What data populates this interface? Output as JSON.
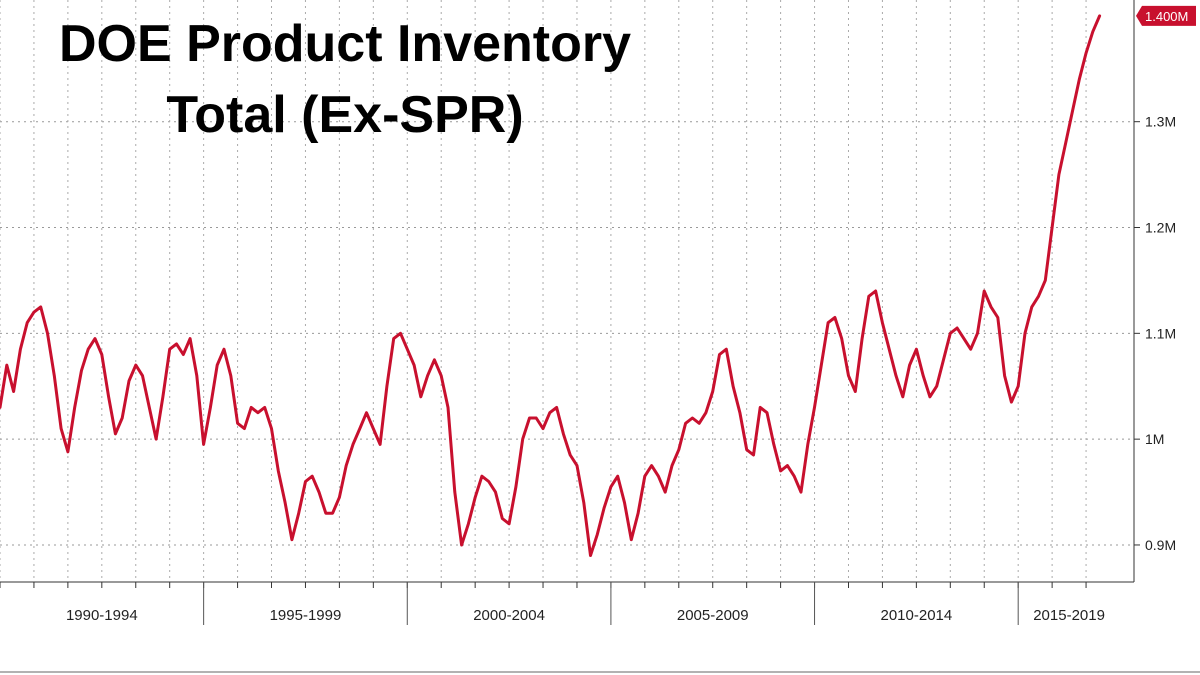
{
  "chart_data": {
    "type": "line",
    "title_line1": "DOE Product Inventory",
    "title_line2": "Total (Ex-SPR)",
    "series": [
      {
        "color": "#c8102e",
        "points": [
          [
            1988.0,
            1.03
          ],
          [
            1988.2,
            1.07
          ],
          [
            1988.4,
            1.045
          ],
          [
            1988.6,
            1.085
          ],
          [
            1988.8,
            1.11
          ],
          [
            1989.0,
            1.12
          ],
          [
            1989.2,
            1.125
          ],
          [
            1989.4,
            1.1
          ],
          [
            1989.6,
            1.06
          ],
          [
            1989.8,
            1.01
          ],
          [
            1990.0,
            0.988
          ],
          [
            1990.2,
            1.03
          ],
          [
            1990.4,
            1.065
          ],
          [
            1990.6,
            1.085
          ],
          [
            1990.8,
            1.095
          ],
          [
            1991.0,
            1.08
          ],
          [
            1991.2,
            1.04
          ],
          [
            1991.4,
            1.005
          ],
          [
            1991.6,
            1.02
          ],
          [
            1991.8,
            1.055
          ],
          [
            1992.0,
            1.07
          ],
          [
            1992.2,
            1.06
          ],
          [
            1992.4,
            1.03
          ],
          [
            1992.6,
            1.0
          ],
          [
            1992.8,
            1.04
          ],
          [
            1993.0,
            1.085
          ],
          [
            1993.2,
            1.09
          ],
          [
            1993.4,
            1.08
          ],
          [
            1993.6,
            1.095
          ],
          [
            1993.8,
            1.06
          ],
          [
            1994.0,
            0.995
          ],
          [
            1994.2,
            1.03
          ],
          [
            1994.4,
            1.07
          ],
          [
            1994.6,
            1.085
          ],
          [
            1994.8,
            1.06
          ],
          [
            1995.0,
            1.015
          ],
          [
            1995.2,
            1.01
          ],
          [
            1995.4,
            1.03
          ],
          [
            1995.6,
            1.025
          ],
          [
            1995.8,
            1.03
          ],
          [
            1996.0,
            1.01
          ],
          [
            1996.2,
            0.97
          ],
          [
            1996.4,
            0.94
          ],
          [
            1996.6,
            0.905
          ],
          [
            1996.8,
            0.93
          ],
          [
            1997.0,
            0.96
          ],
          [
            1997.2,
            0.965
          ],
          [
            1997.4,
            0.95
          ],
          [
            1997.6,
            0.93
          ],
          [
            1997.8,
            0.93
          ],
          [
            1998.0,
            0.945
          ],
          [
            1998.2,
            0.975
          ],
          [
            1998.4,
            0.995
          ],
          [
            1998.6,
            1.01
          ],
          [
            1998.8,
            1.025
          ],
          [
            1999.0,
            1.01
          ],
          [
            1999.2,
            0.995
          ],
          [
            1999.4,
            1.05
          ],
          [
            1999.6,
            1.095
          ],
          [
            1999.8,
            1.1
          ],
          [
            2000.0,
            1.085
          ],
          [
            2000.2,
            1.07
          ],
          [
            2000.4,
            1.04
          ],
          [
            2000.6,
            1.06
          ],
          [
            2000.8,
            1.075
          ],
          [
            2001.0,
            1.06
          ],
          [
            2001.2,
            1.03
          ],
          [
            2001.4,
            0.95
          ],
          [
            2001.6,
            0.9
          ],
          [
            2001.8,
            0.92
          ],
          [
            2002.0,
            0.945
          ],
          [
            2002.2,
            0.965
          ],
          [
            2002.4,
            0.96
          ],
          [
            2002.6,
            0.95
          ],
          [
            2002.8,
            0.925
          ],
          [
            2003.0,
            0.92
          ],
          [
            2003.2,
            0.955
          ],
          [
            2003.4,
            1.0
          ],
          [
            2003.6,
            1.02
          ],
          [
            2003.8,
            1.02
          ],
          [
            2004.0,
            1.01
          ],
          [
            2004.2,
            1.025
          ],
          [
            2004.4,
            1.03
          ],
          [
            2004.6,
            1.005
          ],
          [
            2004.8,
            0.985
          ],
          [
            2005.0,
            0.975
          ],
          [
            2005.2,
            0.94
          ],
          [
            2005.4,
            0.89
          ],
          [
            2005.6,
            0.91
          ],
          [
            2005.8,
            0.935
          ],
          [
            2006.0,
            0.955
          ],
          [
            2006.2,
            0.965
          ],
          [
            2006.4,
            0.94
          ],
          [
            2006.6,
            0.905
          ],
          [
            2006.8,
            0.93
          ],
          [
            2007.0,
            0.965
          ],
          [
            2007.2,
            0.975
          ],
          [
            2007.4,
            0.965
          ],
          [
            2007.6,
            0.95
          ],
          [
            2007.8,
            0.975
          ],
          [
            2008.0,
            0.99
          ],
          [
            2008.2,
            1.015
          ],
          [
            2008.4,
            1.02
          ],
          [
            2008.6,
            1.015
          ],
          [
            2008.8,
            1.025
          ],
          [
            2009.0,
            1.045
          ],
          [
            2009.2,
            1.08
          ],
          [
            2009.4,
            1.085
          ],
          [
            2009.6,
            1.05
          ],
          [
            2009.8,
            1.025
          ],
          [
            2010.0,
            0.99
          ],
          [
            2010.2,
            0.985
          ],
          [
            2010.4,
            1.03
          ],
          [
            2010.6,
            1.025
          ],
          [
            2010.8,
            0.995
          ],
          [
            2011.0,
            0.97
          ],
          [
            2011.2,
            0.975
          ],
          [
            2011.4,
            0.965
          ],
          [
            2011.6,
            0.95
          ],
          [
            2011.8,
            0.995
          ],
          [
            2012.0,
            1.03
          ],
          [
            2012.2,
            1.07
          ],
          [
            2012.4,
            1.11
          ],
          [
            2012.6,
            1.115
          ],
          [
            2012.8,
            1.095
          ],
          [
            2013.0,
            1.06
          ],
          [
            2013.2,
            1.045
          ],
          [
            2013.4,
            1.095
          ],
          [
            2013.6,
            1.135
          ],
          [
            2013.8,
            1.14
          ],
          [
            2014.0,
            1.11
          ],
          [
            2014.2,
            1.085
          ],
          [
            2014.4,
            1.06
          ],
          [
            2014.6,
            1.04
          ],
          [
            2014.8,
            1.07
          ],
          [
            2015.0,
            1.085
          ],
          [
            2015.2,
            1.06
          ],
          [
            2015.4,
            1.04
          ],
          [
            2015.6,
            1.05
          ],
          [
            2015.8,
            1.075
          ],
          [
            2016.0,
            1.1
          ],
          [
            2016.2,
            1.105
          ],
          [
            2016.4,
            1.095
          ],
          [
            2016.6,
            1.085
          ],
          [
            2016.8,
            1.1
          ],
          [
            2017.0,
            1.14
          ],
          [
            2017.2,
            1.125
          ],
          [
            2017.4,
            1.115
          ],
          [
            2017.6,
            1.06
          ],
          [
            2017.8,
            1.035
          ],
          [
            2018.0,
            1.05
          ],
          [
            2018.2,
            1.1
          ],
          [
            2018.4,
            1.125
          ],
          [
            2018.6,
            1.135
          ],
          [
            2018.8,
            1.15
          ],
          [
            2019.0,
            1.2
          ],
          [
            2019.2,
            1.25
          ],
          [
            2019.4,
            1.28
          ],
          [
            2019.6,
            1.31
          ],
          [
            2019.8,
            1.34
          ],
          [
            2020.0,
            1.365
          ],
          [
            2020.2,
            1.385
          ],
          [
            2020.4,
            1.4
          ]
        ]
      }
    ],
    "xlim": [
      1988.0,
      2021.0
    ],
    "ylim": [
      0.865,
      1.415
    ],
    "y_ticks": [
      {
        "value": 0.9,
        "label": "0.9M"
      },
      {
        "value": 1.0,
        "label": "1M"
      },
      {
        "value": 1.1,
        "label": "1.1M"
      },
      {
        "value": 1.2,
        "label": "1.2M"
      },
      {
        "value": 1.3,
        "label": "1.3M"
      }
    ],
    "last_value_label": "1.400M",
    "last_value": 1.4,
    "x_period_labels": [
      {
        "label": "1990-1994",
        "start": 1988.0,
        "end": 1994.0
      },
      {
        "label": "1995-1999",
        "start": 1994.0,
        "end": 2000.0
      },
      {
        "label": "2000-2004",
        "start": 2000.0,
        "end": 2006.0
      },
      {
        "label": "2005-2009",
        "start": 2006.0,
        "end": 2012.0
      },
      {
        "label": "2010-2014",
        "start": 2012.0,
        "end": 2018.0
      },
      {
        "label": "2015-2019",
        "start": 2018.0,
        "end": 2021.0
      }
    ],
    "grid": true,
    "accent_color": "#c8102e"
  }
}
